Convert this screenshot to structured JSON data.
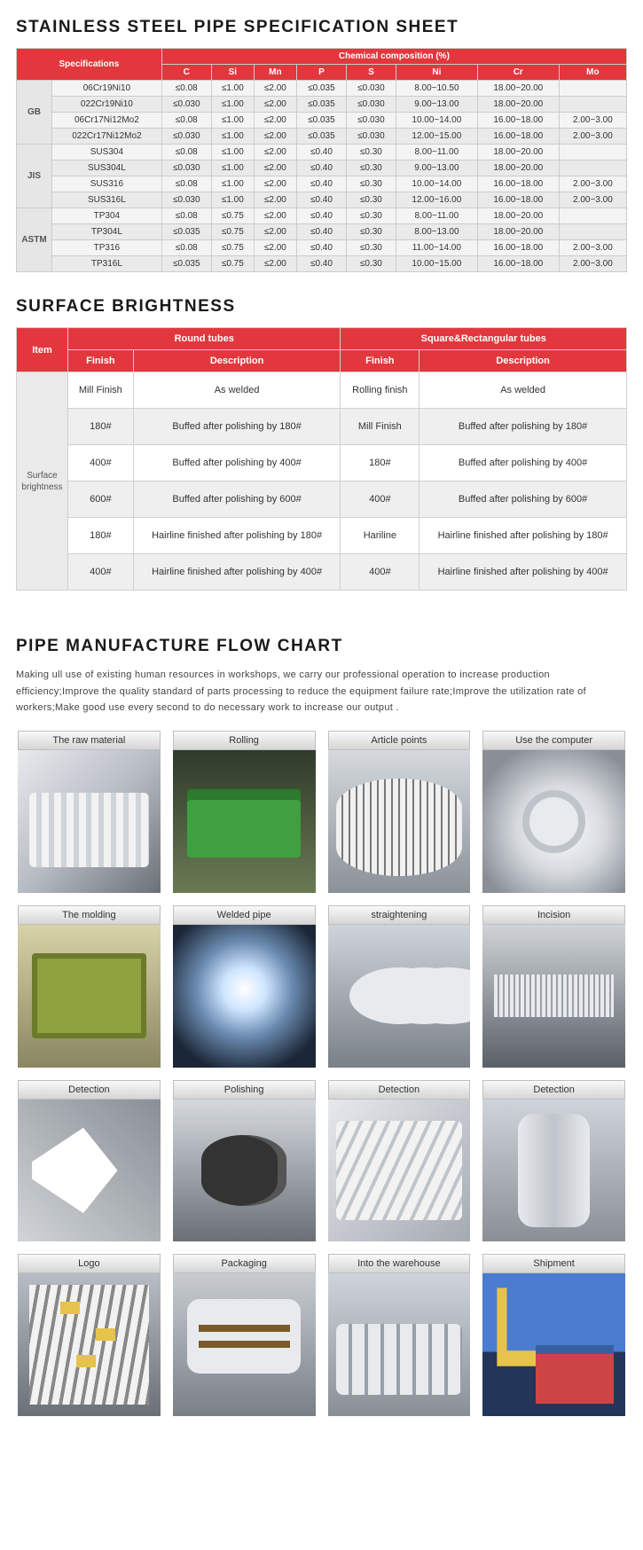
{
  "colors": {
    "accent": "#e2373c",
    "header_text": "#ffffff",
    "body_text": "#333333",
    "border": "#cccccc",
    "row_alt_a": "#f4f4f4",
    "row_alt_b": "#eaeaea"
  },
  "spec": {
    "title": "STAINLESS STEEL PIPE SPECIFICATION SHEET",
    "header_spec": "Specifications",
    "header_chem": "Chemical composition (%)",
    "cols": [
      "C",
      "Si",
      "Mn",
      "P",
      "S",
      "Ni",
      "Cr",
      "Mo"
    ],
    "groups": [
      {
        "label": "GB",
        "rows": [
          {
            "grade": "06Cr19Ni10",
            "c": "≤0.08",
            "si": "≤1.00",
            "mn": "≤2.00",
            "p": "≤0.035",
            "s": "≤0.030",
            "ni": "8.00~10.50",
            "cr": "18.00~20.00",
            "mo": ""
          },
          {
            "grade": "022Cr19Ni10",
            "c": "≤0.030",
            "si": "≤1.00",
            "mn": "≤2.00",
            "p": "≤0.035",
            "s": "≤0.030",
            "ni": "9.00~13.00",
            "cr": "18.00~20.00",
            "mo": ""
          },
          {
            "grade": "06Cr17Ni12Mo2",
            "c": "≤0.08",
            "si": "≤1.00",
            "mn": "≤2.00",
            "p": "≤0.035",
            "s": "≤0.030",
            "ni": "10.00~14.00",
            "cr": "16.00~18.00",
            "mo": "2.00~3.00"
          },
          {
            "grade": "022Cr17Ni12Mo2",
            "c": "≤0.030",
            "si": "≤1.00",
            "mn": "≤2.00",
            "p": "≤0.035",
            "s": "≤0.030",
            "ni": "12.00~15.00",
            "cr": "16.00~18.00",
            "mo": "2.00~3.00"
          }
        ]
      },
      {
        "label": "JIS",
        "rows": [
          {
            "grade": "SUS304",
            "c": "≤0.08",
            "si": "≤1.00",
            "mn": "≤2.00",
            "p": "≤0.40",
            "s": "≤0.30",
            "ni": "8.00~11.00",
            "cr": "18.00~20.00",
            "mo": ""
          },
          {
            "grade": "SUS304L",
            "c": "≤0.030",
            "si": "≤1.00",
            "mn": "≤2.00",
            "p": "≤0.40",
            "s": "≤0.30",
            "ni": "9.00~13.00",
            "cr": "18.00~20.00",
            "mo": ""
          },
          {
            "grade": "SUS316",
            "c": "≤0.08",
            "si": "≤1.00",
            "mn": "≤2.00",
            "p": "≤0.40",
            "s": "≤0.30",
            "ni": "10.00~14.00",
            "cr": "16.00~18.00",
            "mo": "2.00~3.00"
          },
          {
            "grade": "SUS316L",
            "c": "≤0.030",
            "si": "≤1.00",
            "mn": "≤2.00",
            "p": "≤0.40",
            "s": "≤0.30",
            "ni": "12.00~16.00",
            "cr": "16.00~18.00",
            "mo": "2.00~3.00"
          }
        ]
      },
      {
        "label": "ASTM",
        "rows": [
          {
            "grade": "TP304",
            "c": "≤0.08",
            "si": "≤0.75",
            "mn": "≤2.00",
            "p": "≤0.40",
            "s": "≤0.30",
            "ni": "8.00~11.00",
            "cr": "18.00~20.00",
            "mo": ""
          },
          {
            "grade": "TP304L",
            "c": "≤0.035",
            "si": "≤0.75",
            "mn": "≤2.00",
            "p": "≤0.40",
            "s": "≤0.30",
            "ni": "8.00~13.00",
            "cr": "18.00~20.00",
            "mo": ""
          },
          {
            "grade": "TP316",
            "c": "≤0.08",
            "si": "≤0.75",
            "mn": "≤2.00",
            "p": "≤0.40",
            "s": "≤0.30",
            "ni": "11.00~14.00",
            "cr": "16.00~18.00",
            "mo": "2.00~3.00"
          },
          {
            "grade": "TP316L",
            "c": "≤0.035",
            "si": "≤0.75",
            "mn": "≤2.00",
            "p": "≤0.40",
            "s": "≤0.30",
            "ni": "10.00~15.00",
            "cr": "16.00~18.00",
            "mo": "2.00~3.00"
          }
        ]
      }
    ]
  },
  "brightness": {
    "title": "SURFACE BRIGHTNESS",
    "header_item": "Item",
    "header_round": "Round tubes",
    "header_square": "Square&Rectangular tubes",
    "header_finish": "Finish",
    "header_desc": "Description",
    "side_label": "Surface brightness",
    "rows": [
      {
        "rf": "Mill Finish",
        "rd": "As welded",
        "sf": "Rolling finish",
        "sd": "As welded"
      },
      {
        "rf": "180#",
        "rd": "Buffed after polishing by 180#",
        "sf": "Mill Finish",
        "sd": "Buffed after polishing by 180#"
      },
      {
        "rf": "400#",
        "rd": "Buffed after polishing by 400#",
        "sf": "180#",
        "sd": "Buffed after polishing by 400#"
      },
      {
        "rf": "600#",
        "rd": "Buffed after polishing by 600#",
        "sf": "400#",
        "sd": "Buffed after polishing by 600#"
      },
      {
        "rf": "180#",
        "rd": "Hairline finished after polishing by 180#",
        "sf": "Hariline",
        "sd": "Hairline finished after polishing by 180#"
      },
      {
        "rf": "400#",
        "rd": "Hairline finished after polishing by 400#",
        "sf": "400#",
        "sd": "Hairline finished after polishing by 400#"
      }
    ]
  },
  "flow": {
    "title": "PIPE MANUFACTURE FLOW CHART",
    "paragraph": "Making ull use of existing human resources in workshops, we carry our professional operation to increase production efficiency;Improve the quality standard of parts processing to reduce the equipment failure rate;Improve the utilization rate of workers;Make good use every second to do necessary work to increase our output .",
    "steps": [
      {
        "label": "The raw material",
        "cls": "raw"
      },
      {
        "label": "Rolling",
        "cls": "roll"
      },
      {
        "label": "Article points",
        "cls": "art"
      },
      {
        "label": "Use the computer",
        "cls": "comp"
      },
      {
        "label": "The molding",
        "cls": "mold"
      },
      {
        "label": "Welded pipe",
        "cls": "weld"
      },
      {
        "label": "straightening",
        "cls": "str"
      },
      {
        "label": "Incision",
        "cls": "inc"
      },
      {
        "label": "Detection",
        "cls": "det1"
      },
      {
        "label": "Polishing",
        "cls": "pol"
      },
      {
        "label": "Detection",
        "cls": "det2"
      },
      {
        "label": "Detection",
        "cls": "det3"
      },
      {
        "label": "Logo",
        "cls": "logo"
      },
      {
        "label": "Packaging",
        "cls": "pack"
      },
      {
        "label": "Into the warehouse",
        "cls": "ware"
      },
      {
        "label": "Shipment",
        "cls": "ship"
      }
    ]
  }
}
